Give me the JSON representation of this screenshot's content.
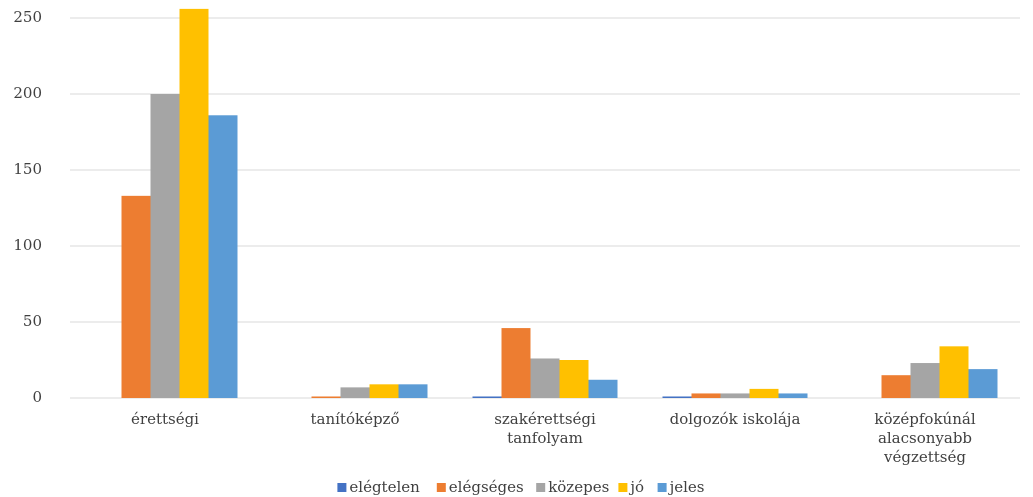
{
  "chart_data": {
    "type": "bar",
    "categories": [
      "érettségi",
      "tanítóképző",
      "szakérettségi\ntanfolyam",
      "dolgozók iskolája",
      "középfokúnál\nalacsonyabb\nvégzettség"
    ],
    "series": [
      {
        "name": "elégtelen",
        "color": "#4472c4",
        "values": [
          0,
          0,
          1,
          1,
          0
        ]
      },
      {
        "name": "elégséges",
        "color": "#ed7d31",
        "values": [
          133,
          1,
          46,
          3,
          15
        ]
      },
      {
        "name": "közepes",
        "color": "#a5a5a5",
        "values": [
          200,
          7,
          26,
          3,
          23
        ]
      },
      {
        "name": "jó",
        "color": "#ffc000",
        "values": [
          256,
          9,
          25,
          6,
          34
        ]
      },
      {
        "name": "jeles",
        "color": "#5b9bd5",
        "values": [
          186,
          9,
          12,
          3,
          19
        ]
      }
    ],
    "ylim": [
      0,
      250
    ],
    "yticks": [
      0,
      50,
      100,
      150,
      200,
      250
    ],
    "grid": true,
    "legend": "bottom"
  }
}
